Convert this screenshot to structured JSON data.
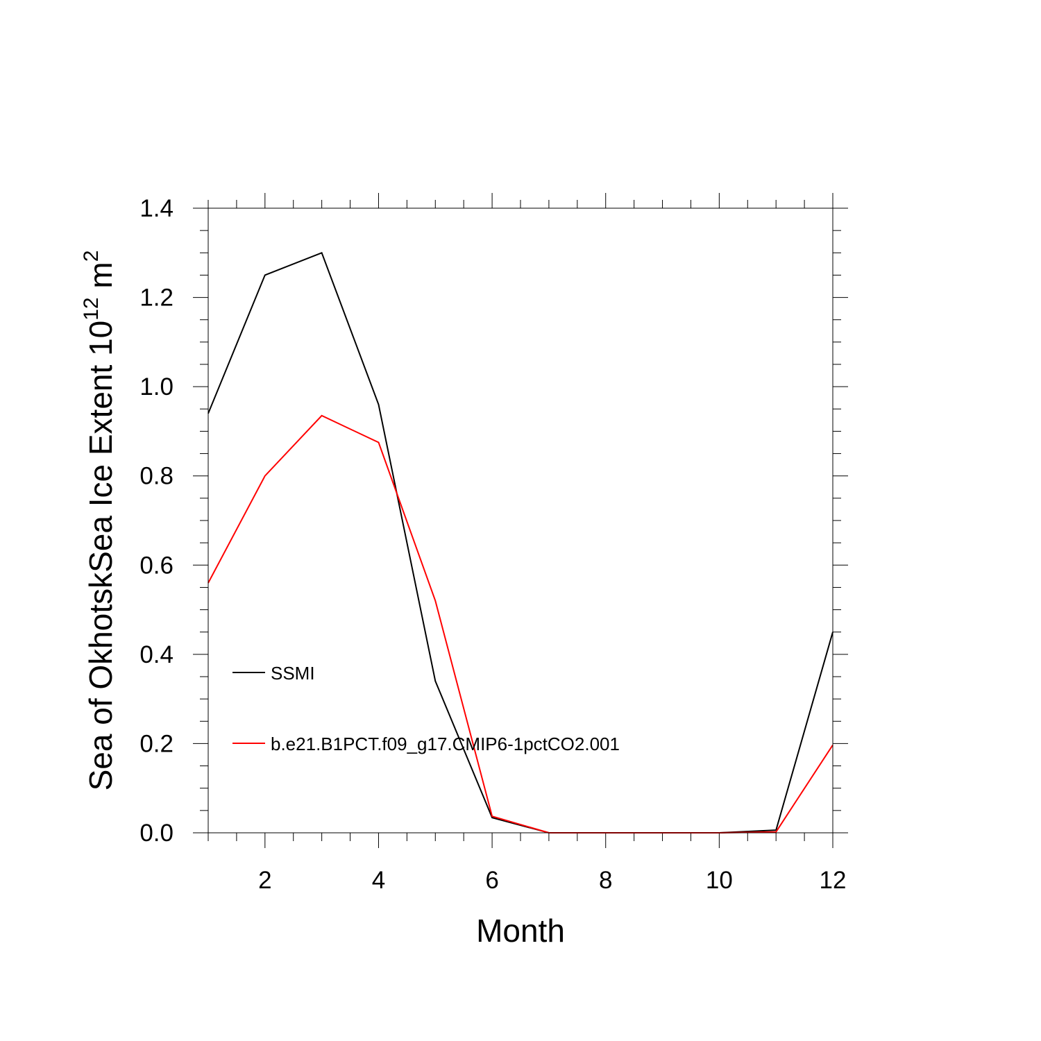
{
  "chart_data": {
    "type": "line",
    "xlabel": "Month",
    "ylabel": {
      "main": "Sea of OkhotskSea Ice Extent 10",
      "exponent": "12",
      "unit": " m",
      "unit_exponent": "2"
    },
    "xlim": [
      1,
      12
    ],
    "ylim": [
      0,
      1.4
    ],
    "x_ticks": [
      2,
      4,
      6,
      8,
      10,
      12
    ],
    "x_tick_labels": [
      "2",
      "4",
      "6",
      "8",
      "10",
      "12"
    ],
    "y_ticks": [
      0,
      0.2,
      0.4,
      0.6,
      0.8,
      1.0,
      1.2,
      1.4
    ],
    "y_tick_labels": [
      "0.0",
      "0.2",
      "0.4",
      "0.6",
      "0.8",
      "1.0",
      "1.2",
      "1.4"
    ],
    "grid": false,
    "legend_position": "left, inside plot",
    "x": [
      1,
      2,
      3,
      4,
      5,
      6,
      7,
      8,
      9,
      10,
      11,
      12
    ],
    "series": [
      {
        "name": "SSMI",
        "color": "#000000",
        "values": [
          0.94,
          1.25,
          1.3,
          0.96,
          0.34,
          0.034,
          0.0,
          0.0,
          0.0,
          0.0,
          0.006,
          0.45
        ]
      },
      {
        "name": "b.e21.B1PCT.f09_g17.CMIP6-1pctCO2.001",
        "color": "#ff0000",
        "values": [
          0.56,
          0.8,
          0.935,
          0.875,
          0.52,
          0.037,
          0.0,
          0.0,
          0.0,
          0.0,
          0.002,
          0.197
        ]
      }
    ]
  }
}
